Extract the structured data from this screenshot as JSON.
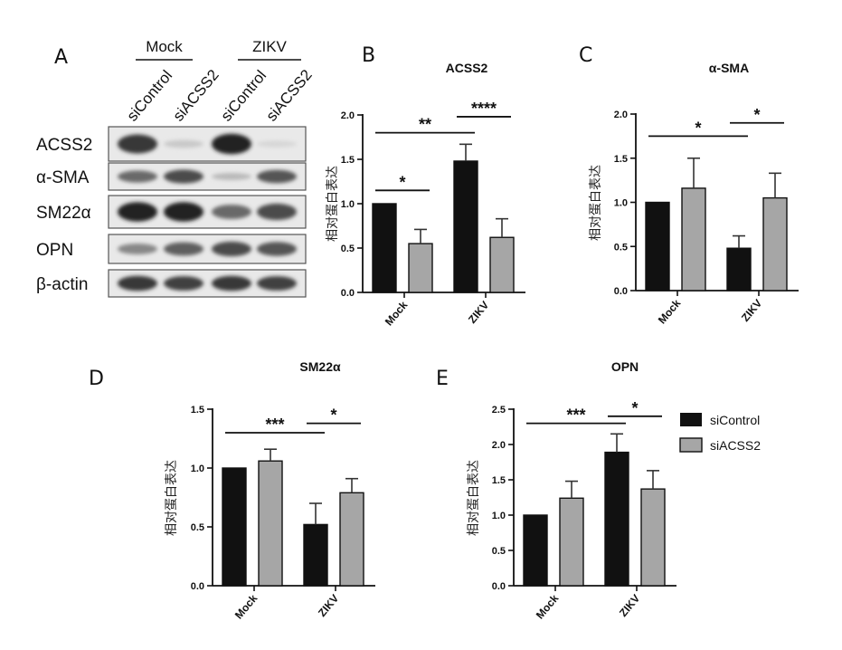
{
  "colors": {
    "siControl": "#111111",
    "siACSS2": "#a6a6a6",
    "axis": "#111111"
  },
  "blot": {
    "letter": "A",
    "groups": [
      "Mock",
      "ZIKV"
    ],
    "lanes": [
      "siControl",
      "siACSS2",
      "siControl",
      "siACSS2"
    ],
    "rows": [
      {
        "label": "ACSS2",
        "intensity": [
          0.85,
          0.12,
          0.95,
          0.05
        ]
      },
      {
        "label": "α-SMA",
        "intensity": [
          0.6,
          0.75,
          0.2,
          0.7
        ]
      },
      {
        "label": "SM22α",
        "intensity": [
          0.95,
          0.95,
          0.6,
          0.75
        ]
      },
      {
        "label": "OPN",
        "intensity": [
          0.45,
          0.65,
          0.75,
          0.7
        ]
      },
      {
        "label": "β-actin",
        "intensity": [
          0.85,
          0.8,
          0.85,
          0.8
        ]
      }
    ]
  },
  "legend": {
    "items": [
      "siControl",
      "siACSS2"
    ]
  },
  "chart_data": [
    {
      "letter": "B",
      "type": "bar",
      "title": "ACSS2",
      "ylabel": "相对蛋白表达",
      "categories": [
        "Mock",
        "ZIKV"
      ],
      "ylim": [
        0,
        2.0
      ],
      "yticks": [
        "0.0",
        "0.5",
        "1.0",
        "1.5",
        "2.0"
      ],
      "series": [
        {
          "name": "siControl",
          "values": [
            1.0,
            1.48
          ],
          "errors": [
            0,
            0.19
          ]
        },
        {
          "name": "siACSS2",
          "values": [
            0.55,
            0.62
          ],
          "errors": [
            0.16,
            0.21
          ]
        }
      ],
      "significance": [
        {
          "label": "*",
          "from": [
            0,
            0
          ],
          "to": [
            0,
            1
          ],
          "y": 1.15
        },
        {
          "label": "**",
          "from": [
            0,
            0
          ],
          "to": [
            1,
            0
          ],
          "y": 1.8
        },
        {
          "label": "****",
          "from": [
            1,
            0
          ],
          "to": [
            1,
            1
          ],
          "y": 1.98
        }
      ]
    },
    {
      "letter": "C",
      "type": "bar",
      "title": "α-SMA",
      "ylabel": "相对蛋白表达",
      "categories": [
        "Mock",
        "ZIKV"
      ],
      "ylim": [
        0,
        2.0
      ],
      "yticks": [
        "0.0",
        "0.5",
        "1.0",
        "1.5",
        "2.0"
      ],
      "series": [
        {
          "name": "siControl",
          "values": [
            1.0,
            0.48
          ],
          "errors": [
            0,
            0.14
          ]
        },
        {
          "name": "siACSS2",
          "values": [
            1.16,
            1.05
          ],
          "errors": [
            0.34,
            0.28
          ]
        }
      ],
      "significance": [
        {
          "label": "*",
          "from": [
            0,
            0
          ],
          "to": [
            1,
            0
          ],
          "y": 1.75
        },
        {
          "label": "*",
          "from": [
            1,
            0
          ],
          "to": [
            1,
            1
          ],
          "y": 1.9
        }
      ]
    },
    {
      "letter": "D",
      "type": "bar",
      "title": "SM22α",
      "ylabel": "相对蛋白表达",
      "categories": [
        "Mock",
        "ZIKV"
      ],
      "ylim": [
        0,
        1.5
      ],
      "yticks": [
        "0.0",
        "0.5",
        "1.0",
        "1.5"
      ],
      "series": [
        {
          "name": "siControl",
          "values": [
            1.0,
            0.52
          ],
          "errors": [
            0,
            0.18
          ]
        },
        {
          "name": "siACSS2",
          "values": [
            1.06,
            0.79
          ],
          "errors": [
            0.1,
            0.12
          ]
        }
      ],
      "significance": [
        {
          "label": "***",
          "from": [
            0,
            0
          ],
          "to": [
            1,
            0
          ],
          "y": 1.3
        },
        {
          "label": "*",
          "from": [
            1,
            0
          ],
          "to": [
            1,
            1
          ],
          "y": 1.38
        }
      ]
    },
    {
      "letter": "E",
      "type": "bar",
      "title": "OPN",
      "ylabel": "相对蛋白表达",
      "categories": [
        "Mock",
        "ZIKV"
      ],
      "ylim": [
        0,
        2.5
      ],
      "yticks": [
        "0.0",
        "0.5",
        "1.0",
        "1.5",
        "2.0",
        "2.5"
      ],
      "series": [
        {
          "name": "siControl",
          "values": [
            1.0,
            1.89
          ],
          "errors": [
            0,
            0.26
          ]
        },
        {
          "name": "siACSS2",
          "values": [
            1.24,
            1.37
          ],
          "errors": [
            0.24,
            0.26
          ]
        }
      ],
      "significance": [
        {
          "label": "***",
          "from": [
            0,
            0
          ],
          "to": [
            1,
            0
          ],
          "y": 2.3
        },
        {
          "label": "*",
          "from": [
            1,
            0
          ],
          "to": [
            1,
            1
          ],
          "y": 2.4
        }
      ]
    }
  ]
}
